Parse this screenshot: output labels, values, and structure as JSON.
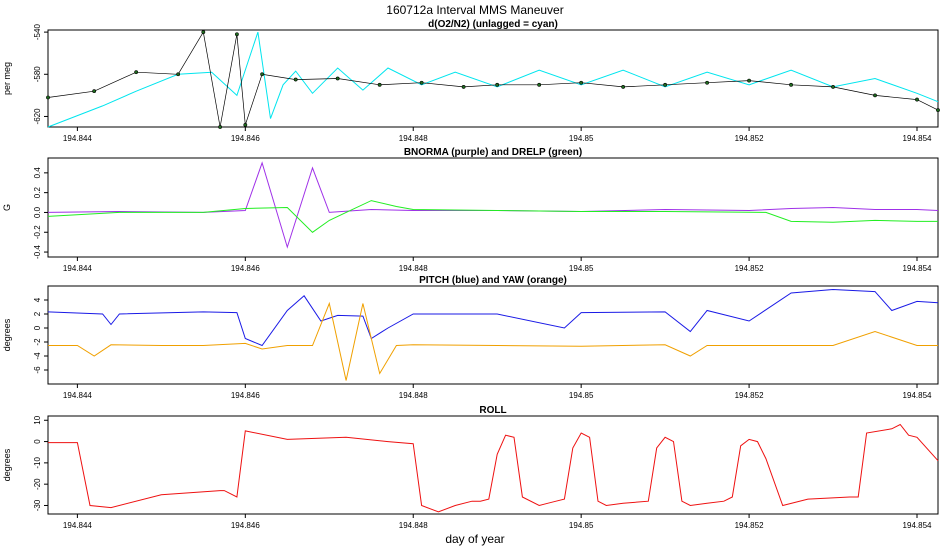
{
  "title": "160712a   Interval MMS Maneuver",
  "xlabel": "day of year",
  "chart_data": [
    {
      "type": "line",
      "title": "d(O2/N2) (unlagged = cyan)",
      "ylabel": "per meg",
      "xlim": [
        194.84365,
        194.85425
      ],
      "ylim": [
        -630,
        -538
      ],
      "yticks": [
        -540,
        -580,
        -620
      ],
      "xticks": [
        194.844,
        194.846,
        194.848,
        194.85,
        194.852,
        194.854
      ],
      "series": [
        {
          "color": "#00e5ee",
          "style": "line",
          "x": [
            194.84365,
            194.8443,
            194.8447,
            194.8452,
            194.8456,
            194.8459,
            194.84615,
            194.8463,
            194.84645,
            194.8466,
            194.8468,
            194.8471,
            194.8474,
            194.8477,
            194.8481,
            194.8485,
            194.849,
            194.8495,
            194.85,
            194.8505,
            194.851,
            194.8515,
            194.852,
            194.8525,
            194.853,
            194.8535,
            194.854,
            194.85425
          ],
          "y": [
            -630,
            -610,
            -596,
            -580,
            -578,
            -600,
            -540,
            -622,
            -590,
            -577,
            -598,
            -574,
            -595,
            -574,
            -590,
            -578,
            -592,
            -576,
            -590,
            -576,
            -592,
            -578,
            -590,
            -576,
            -592,
            -584,
            -598,
            -606
          ]
        },
        {
          "color": "#000000",
          "style": "dots",
          "x": [
            194.84365,
            194.8442,
            194.8447,
            194.8452,
            194.8455,
            194.8457,
            194.8459,
            194.846,
            194.8462,
            194.8466,
            194.8471,
            194.8476,
            194.8481,
            194.8486,
            194.849,
            194.8495,
            194.85,
            194.8505,
            194.851,
            194.8515,
            194.852,
            194.8525,
            194.853,
            194.8535,
            194.854,
            194.85425
          ],
          "y": [
            -602,
            -596,
            -578,
            -580,
            -540,
            -630,
            -542,
            -628,
            -580,
            -585,
            -584,
            -590,
            -588,
            -592,
            -590,
            -590,
            -588,
            -592,
            -590,
            -588,
            -586,
            -590,
            -592,
            -600,
            -604,
            -614
          ]
        }
      ]
    },
    {
      "type": "line",
      "title": "BNORMA (purple) and DRELP (green)",
      "ylabel": "G",
      "xlim": [
        194.84365,
        194.85425
      ],
      "ylim": [
        -0.45,
        0.55
      ],
      "yticks": [
        0.4,
        0.2,
        0.0,
        -0.2,
        -0.4
      ],
      "yticklabels": [
        "0.4",
        "0.2",
        "0.0",
        "-0.2",
        "-0.4"
      ],
      "xticks": [
        194.844,
        194.846,
        194.848,
        194.85,
        194.852,
        194.854
      ],
      "series": [
        {
          "color": "#9f30e8",
          "x": [
            194.84365,
            194.8445,
            194.8455,
            194.846,
            194.8462,
            194.8465,
            194.8468,
            194.847,
            194.8475,
            194.848,
            194.849,
            194.85,
            194.851,
            194.852,
            194.8525,
            194.853,
            194.8535,
            194.854,
            194.85425
          ],
          "y": [
            0.0,
            0.01,
            0.0,
            0.02,
            0.5,
            -0.35,
            0.45,
            0.0,
            0.03,
            0.02,
            0.02,
            0.01,
            0.03,
            0.02,
            0.04,
            0.05,
            0.03,
            0.03,
            0.02
          ]
        },
        {
          "color": "#22ee22",
          "x": [
            194.84365,
            194.8445,
            194.8455,
            194.846,
            194.8465,
            194.8468,
            194.847,
            194.8472,
            194.8475,
            194.8478,
            194.848,
            194.849,
            194.85,
            194.851,
            194.8522,
            194.8525,
            194.853,
            194.8535,
            194.854,
            194.85425
          ],
          "y": [
            -0.04,
            0.0,
            0.0,
            0.04,
            0.05,
            -0.2,
            -0.08,
            0.0,
            0.12,
            0.06,
            0.03,
            0.02,
            0.01,
            0.01,
            0.0,
            -0.09,
            -0.1,
            -0.08,
            -0.09,
            -0.09
          ]
        }
      ]
    },
    {
      "type": "line",
      "title": "PITCH (blue) and YAW (orange)",
      "ylabel": "degrees",
      "xlim": [
        194.84365,
        194.85425
      ],
      "ylim": [
        -8,
        6
      ],
      "yticks": [
        4,
        2,
        0,
        -2,
        -4,
        -6
      ],
      "xticks": [
        194.844,
        194.846,
        194.848,
        194.85,
        194.852,
        194.854
      ],
      "series": [
        {
          "color": "#1a1ae6",
          "x": [
            194.84365,
            194.8443,
            194.8444,
            194.8445,
            194.8455,
            194.8459,
            194.846,
            194.8462,
            194.8465,
            194.8467,
            194.8469,
            194.8471,
            194.8474,
            194.8475,
            194.8477,
            194.848,
            194.849,
            194.8498,
            194.85,
            194.851,
            194.8513,
            194.8515,
            194.852,
            194.8525,
            194.853,
            194.8535,
            194.8537,
            194.854,
            194.85425
          ],
          "y": [
            2.3,
            2.0,
            0.5,
            2.0,
            2.3,
            2.2,
            -1.5,
            -2.5,
            2.5,
            4.6,
            1.0,
            1.8,
            1.7,
            -1.5,
            0.0,
            2.0,
            2.0,
            0.0,
            2.2,
            2.3,
            -0.5,
            2.5,
            1.0,
            5.0,
            5.5,
            5.2,
            2.5,
            3.8,
            3.6
          ]
        },
        {
          "color": "#f0a000",
          "x": [
            194.84365,
            194.844,
            194.8442,
            194.8444,
            194.845,
            194.8455,
            194.846,
            194.8462,
            194.8465,
            194.8468,
            194.847,
            194.8472,
            194.8474,
            194.8476,
            194.8478,
            194.848,
            194.849,
            194.85,
            194.851,
            194.8513,
            194.8515,
            194.852,
            194.853,
            194.8535,
            194.854,
            194.85425
          ],
          "y": [
            -2.5,
            -2.5,
            -4.0,
            -2.4,
            -2.5,
            -2.5,
            -2.2,
            -3.0,
            -2.5,
            -2.5,
            3.5,
            -7.5,
            3.5,
            -6.5,
            -2.5,
            -2.4,
            -2.5,
            -2.6,
            -2.4,
            -4.0,
            -2.5,
            -2.5,
            -2.5,
            -0.5,
            -2.5,
            -2.5
          ]
        }
      ]
    },
    {
      "type": "line",
      "title": "ROLL",
      "ylabel": "degrees",
      "xlim": [
        194.84365,
        194.85425
      ],
      "ylim": [
        -34,
        12
      ],
      "yticks": [
        10,
        0,
        -10,
        -20,
        -30
      ],
      "xticks": [
        194.844,
        194.846,
        194.848,
        194.85,
        194.852,
        194.854
      ],
      "series": [
        {
          "color": "#ee1111",
          "x": [
            194.84365,
            194.844,
            194.84415,
            194.8444,
            194.845,
            194.8457,
            194.84575,
            194.8459,
            194.846,
            194.8465,
            194.8472,
            194.8477,
            194.848,
            194.8481,
            194.8483,
            194.8485,
            194.8487,
            194.8488,
            194.8489,
            194.849,
            194.8491,
            194.8492,
            194.8493,
            194.8495,
            194.8496,
            194.8497,
            194.8498,
            194.8499,
            194.85,
            194.8501,
            194.8502,
            194.8503,
            194.8505,
            194.8508,
            194.8509,
            194.851,
            194.8511,
            194.8512,
            194.8513,
            194.8515,
            194.8517,
            194.8518,
            194.8519,
            194.852,
            194.8521,
            194.8522,
            194.8524,
            194.8527,
            194.8532,
            194.8533,
            194.8534,
            194.8537,
            194.8538,
            194.8539,
            194.854,
            194.85425
          ],
          "y": [
            -0.5,
            -0.5,
            -30,
            -31,
            -25,
            -23,
            -23,
            -26,
            5,
            1,
            2,
            0,
            -1,
            -30,
            -33,
            -30,
            -28,
            -28,
            -27,
            -6,
            3,
            2,
            -26,
            -30,
            -29,
            -28,
            -27,
            -3,
            4,
            2,
            -28,
            -30,
            -29,
            -28,
            -3,
            2,
            0,
            -28,
            -30,
            -29,
            -28,
            -26,
            -2,
            1,
            0,
            -8,
            -30,
            -27,
            -26,
            -26,
            4,
            6,
            8,
            3,
            2,
            -9
          ]
        }
      ]
    }
  ]
}
